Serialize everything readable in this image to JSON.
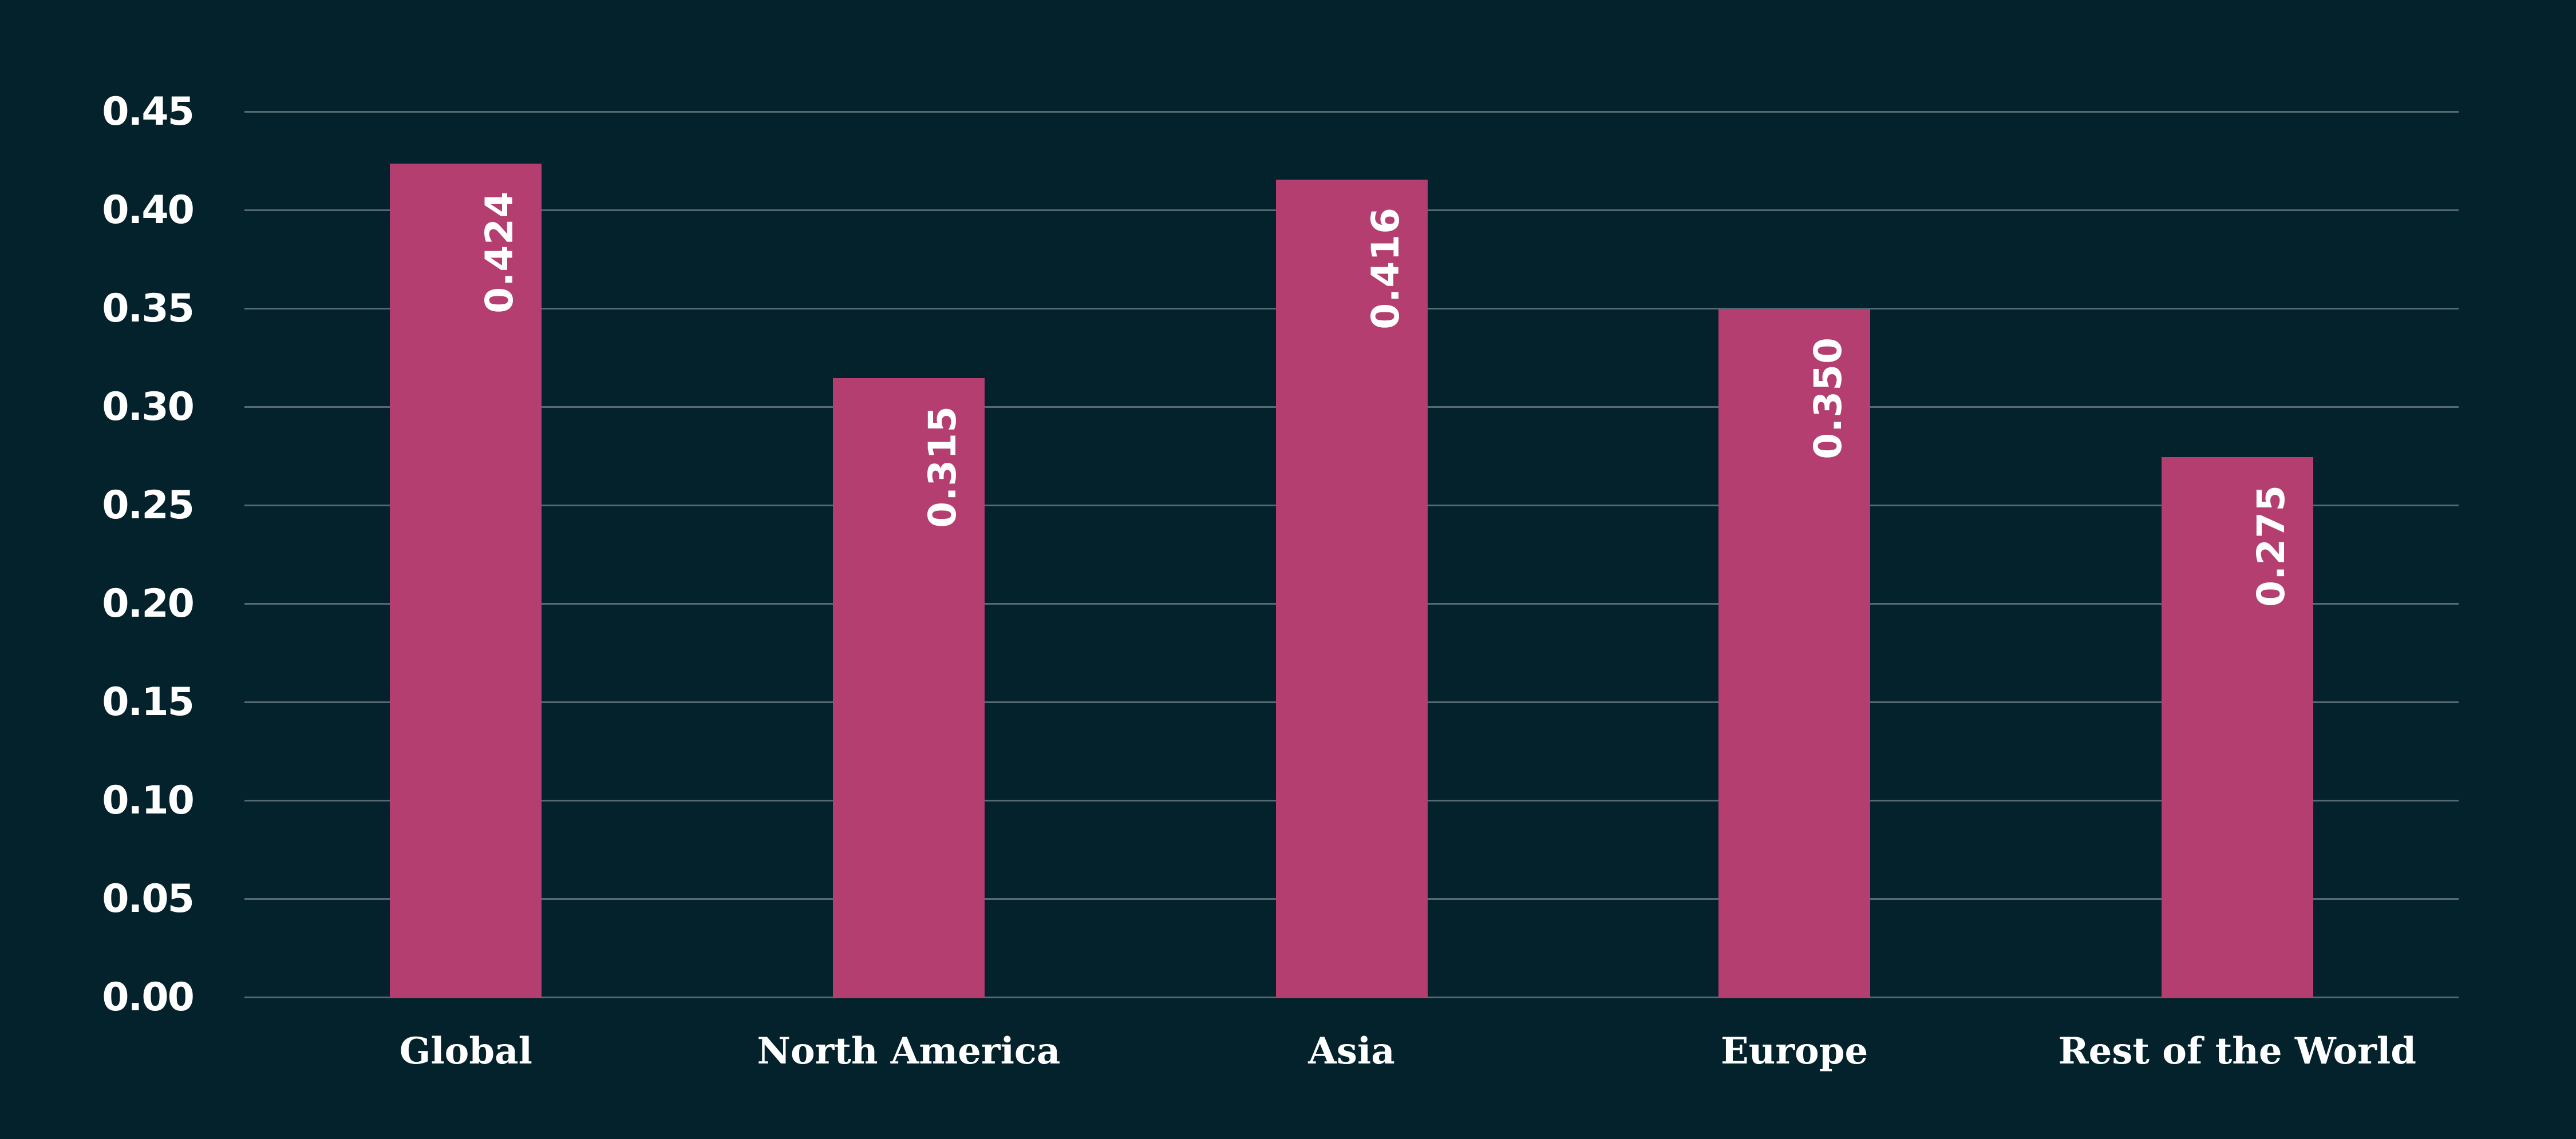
{
  "chart_data": {
    "type": "bar",
    "categories": [
      "Global",
      "North America",
      "Asia",
      "Europe",
      "Rest of the World"
    ],
    "values": [
      0.424,
      0.315,
      0.416,
      0.35,
      0.275
    ],
    "value_labels": [
      "0.424",
      "0.315",
      "0.416",
      "0.350",
      "0.275"
    ],
    "title": "",
    "xlabel": "",
    "ylabel": "",
    "ylim": [
      0.0,
      0.45
    ],
    "ytick_step": 0.05,
    "ytick_labels": [
      "0.00",
      "0.05",
      "0.10",
      "0.15",
      "0.20",
      "0.25",
      "0.30",
      "0.35",
      "0.40",
      "0.45"
    ],
    "grid": "horizontal-only",
    "legend": "none",
    "bar_label_rotation": "vertical-bottom-to-top",
    "bar_label_position": "inside-top",
    "colors": {
      "background": "#03222b",
      "bar": "#b43e70",
      "gridline": "#546970",
      "tick_text": "#ffffff",
      "bar_value_text": "#ffffff",
      "category_text": "#ffffff"
    }
  }
}
